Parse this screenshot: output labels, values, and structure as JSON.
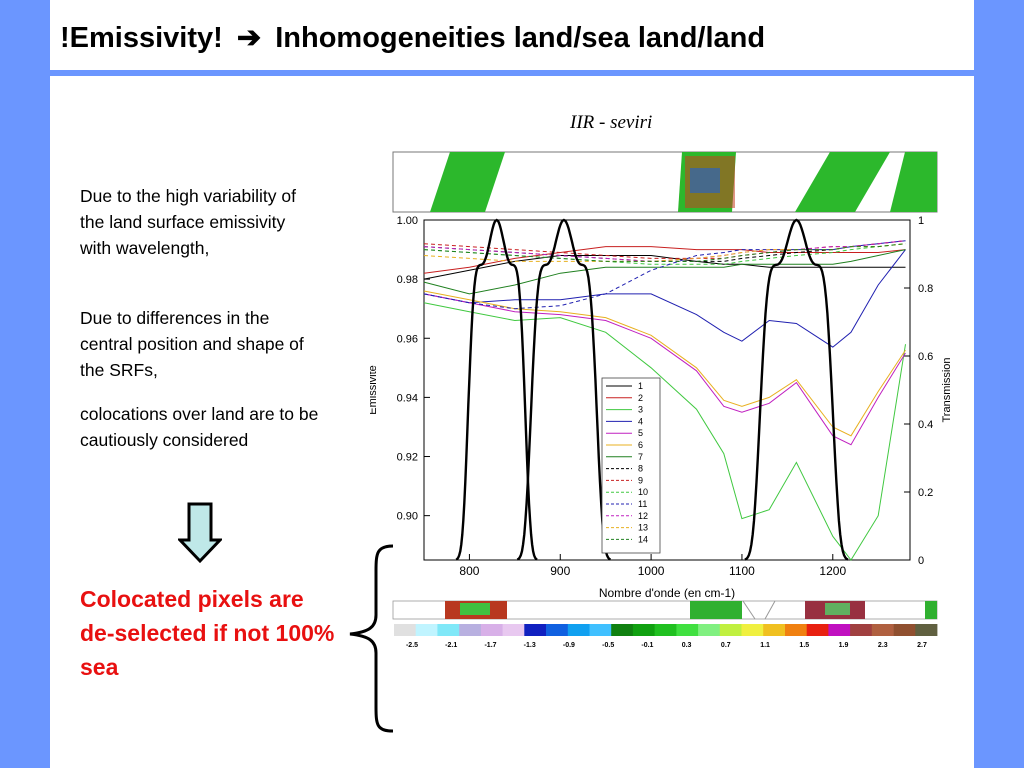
{
  "slide": {
    "title_part1": "!Emissivity!",
    "title_arrow": "➔",
    "title_part2": "Inhomogeneities land/sea land/land",
    "paragraphs": [
      "Due to the high variability of the land surface emissivity with wavelength,",
      "Due to differences in the central position and shape of the SRFs,",
      "colocations over land are to be cautiously considered"
    ],
    "conclusion": "Colocated pixels are de-selected if not 100% sea",
    "chart_caption": "IIR - seviri",
    "colors": {
      "background": "#6b96ff",
      "accent_red": "#e81010",
      "arrow_fill": "#bfe8e8"
    },
    "icons": [
      "down-arrow-icon",
      "curly-brace-icon"
    ]
  },
  "chart_data": {
    "type": "line",
    "xlabel": "Nombre d'onde (en cm-1)",
    "ylabel": "Emissivite",
    "y2label": "Transmission",
    "xlim": [
      750,
      1285
    ],
    "ylim": [
      0.885,
      1.0
    ],
    "y2lim": [
      0,
      1
    ],
    "x_ticks": [
      "800",
      "900",
      "1000",
      "1100",
      "1200"
    ],
    "x_tick_values": [
      800,
      900,
      1000,
      1100,
      1200
    ],
    "y_ticks": [
      "1.00",
      "0.98",
      "0.96",
      "0.94",
      "0.92",
      "0.90"
    ],
    "y_tick_values": [
      1.0,
      0.98,
      0.96,
      0.94,
      0.92,
      0.9
    ],
    "y2_ticks": [
      "1",
      "0.8",
      "0.6",
      "0.4",
      "0.2",
      "0"
    ],
    "y2_tick_values": [
      1,
      0.8,
      0.6,
      0.4,
      0.2,
      0
    ],
    "legend_position": "center",
    "x": [
      750,
      800,
      850,
      900,
      950,
      1000,
      1050,
      1080,
      1100,
      1130,
      1160,
      1200,
      1220,
      1250,
      1280
    ],
    "series": [
      {
        "name": "1",
        "color": "#000000",
        "dash": false,
        "values": [
          0.98,
          0.983,
          0.986,
          0.988,
          0.988,
          0.988,
          0.986,
          0.985,
          0.985,
          0.984,
          0.984,
          0.984,
          0.984,
          0.984,
          0.984
        ]
      },
      {
        "name": "2",
        "color": "#c82020",
        "dash": false,
        "values": [
          0.982,
          0.984,
          0.987,
          0.989,
          0.991,
          0.991,
          0.99,
          0.99,
          0.99,
          0.989,
          0.989,
          0.989,
          0.989,
          0.989,
          0.99
        ]
      },
      {
        "name": "3",
        "color": "#40c840",
        "dash": false,
        "values": [
          0.972,
          0.969,
          0.966,
          0.967,
          0.962,
          0.95,
          0.936,
          0.921,
          0.899,
          0.902,
          0.918,
          0.893,
          0.885,
          0.9,
          0.958
        ]
      },
      {
        "name": "4",
        "color": "#2020b0",
        "dash": false,
        "values": [
          0.975,
          0.972,
          0.973,
          0.973,
          0.975,
          0.975,
          0.968,
          0.962,
          0.959,
          0.966,
          0.965,
          0.957,
          0.962,
          0.978,
          0.99
        ]
      },
      {
        "name": "5",
        "color": "#c020c0",
        "dash": false,
        "values": [
          0.975,
          0.972,
          0.969,
          0.968,
          0.966,
          0.96,
          0.949,
          0.937,
          0.935,
          0.938,
          0.945,
          0.927,
          0.924,
          0.94,
          0.955
        ]
      },
      {
        "name": "6",
        "color": "#e8b020",
        "dash": false,
        "values": [
          0.976,
          0.973,
          0.97,
          0.969,
          0.967,
          0.961,
          0.95,
          0.939,
          0.937,
          0.94,
          0.946,
          0.93,
          0.927,
          0.942,
          0.956
        ]
      },
      {
        "name": "7",
        "color": "#208020",
        "dash": false,
        "values": [
          0.979,
          0.975,
          0.978,
          0.982,
          0.984,
          0.984,
          0.984,
          0.984,
          0.985,
          0.985,
          0.985,
          0.985,
          0.986,
          0.988,
          0.99
        ]
      },
      {
        "name": "8",
        "color": "#000000",
        "dash": true,
        "values": [
          0.991,
          0.99,
          0.989,
          0.988,
          0.987,
          0.986,
          0.986,
          0.986,
          0.987,
          0.988,
          0.989,
          0.99,
          0.991,
          0.992,
          0.993
        ]
      },
      {
        "name": "9",
        "color": "#c82020",
        "dash": true,
        "values": [
          0.992,
          0.991,
          0.99,
          0.989,
          0.988,
          0.987,
          0.987,
          0.987,
          0.988,
          0.989,
          0.99,
          0.991,
          0.991,
          0.992,
          0.993
        ]
      },
      {
        "name": "10",
        "color": "#40c840",
        "dash": true,
        "values": [
          0.99,
          0.989,
          0.988,
          0.987,
          0.986,
          0.985,
          0.985,
          0.985,
          0.986,
          0.987,
          0.988,
          0.989,
          0.99,
          0.991,
          0.992
        ]
      },
      {
        "name": "11",
        "color": "#2020b0",
        "dash": true,
        "values": [
          0.975,
          0.972,
          0.97,
          0.971,
          0.975,
          0.983,
          0.988,
          0.989,
          0.99,
          0.99,
          0.99,
          0.99,
          0.991,
          0.992,
          0.993
        ]
      },
      {
        "name": "12",
        "color": "#c020c0",
        "dash": true,
        "values": [
          0.991,
          0.99,
          0.989,
          0.988,
          0.987,
          0.986,
          0.987,
          0.988,
          0.989,
          0.99,
          0.99,
          0.991,
          0.991,
          0.992,
          0.993
        ]
      },
      {
        "name": "13",
        "color": "#e8b020",
        "dash": true,
        "values": [
          0.988,
          0.987,
          0.986,
          0.986,
          0.986,
          0.986,
          0.987,
          0.988,
          0.989,
          0.99,
          0.99,
          0.99,
          0.991,
          0.991,
          0.992
        ]
      },
      {
        "name": "14",
        "color": "#208020",
        "dash": true,
        "values": [
          0.99,
          0.989,
          0.988,
          0.987,
          0.986,
          0.986,
          0.986,
          0.987,
          0.988,
          0.989,
          0.99,
          0.99,
          0.991,
          0.991,
          0.992
        ]
      }
    ],
    "srf_bands": [
      {
        "center": 830,
        "halfwidth": 33,
        "peak": 1.0
      },
      {
        "center": 904,
        "halfwidth": 38,
        "peak": 1.0
      },
      {
        "center": 1160,
        "halfwidth": 42,
        "peak": 1.0
      }
    ],
    "colorbar_labels": [
      "-2.5",
      "-2.1",
      "-1.7",
      "-1.3",
      "-0.9",
      "-0.5",
      "-0.1",
      "0.3",
      "0.7",
      "1.1",
      "1.5",
      "1.9",
      "2.3",
      "2.7"
    ],
    "colorbar_colors": [
      "#e0e0e0",
      "#c0f4ff",
      "#80e8f8",
      "#b8b0e0",
      "#d8b0e8",
      "#e8c8f0",
      "#1020c0",
      "#1060e0",
      "#10a0f0",
      "#40c0ff",
      "#108010",
      "#10a010",
      "#20c020",
      "#40e040",
      "#80f080",
      "#c0f040",
      "#f0f040",
      "#f0c020",
      "#f08010",
      "#e82010",
      "#c010c0",
      "#a04040",
      "#b06040",
      "#905030",
      "#606040"
    ]
  }
}
